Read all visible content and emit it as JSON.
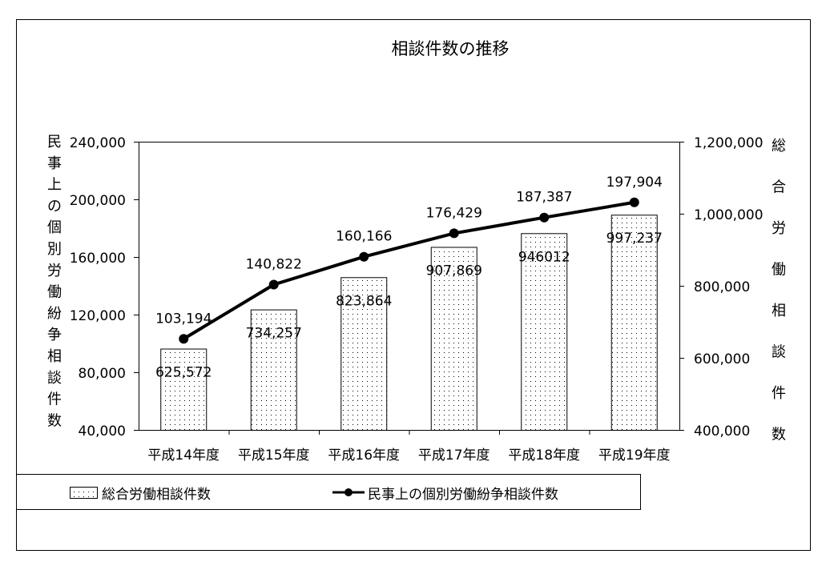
{
  "chart_data": {
    "type": "bar+line",
    "title": "相談件数の推移",
    "categories": [
      "平成14年度",
      "平成15年度",
      "平成16年度",
      "平成17年度",
      "平成18年度",
      "平成19年度"
    ],
    "series": [
      {
        "name": "総合労働相談件数",
        "type": "bar",
        "axis": "right",
        "values": [
          625572,
          734257,
          823864,
          907869,
          946012,
          997237
        ],
        "labels": [
          "625,572",
          "734,257",
          "823,864",
          "907,869",
          "946012",
          "997,237"
        ],
        "pattern": "dotted",
        "color": "#000000"
      },
      {
        "name": "民事上の個別労働紛争相談件数",
        "type": "line",
        "axis": "left",
        "marker": "circle",
        "values": [
          103194,
          140822,
          160166,
          176429,
          187387,
          197904
        ],
        "labels": [
          "103,194",
          "140,822",
          "160,166",
          "176,429",
          "187,387",
          "197,904"
        ],
        "color": "#000000"
      }
    ],
    "ylabel_left": "民事上の個別労働紛争相談件数",
    "ylabel_right": "総合労働相談件数",
    "ylim_left": [
      40000,
      240000
    ],
    "yticks_left": [
      "40,000",
      "80,000",
      "120,000",
      "160,000",
      "200,000",
      "240,000"
    ],
    "ylim_right": [
      400000,
      1200000
    ],
    "yticks_right": [
      "400,000",
      "600,000",
      "800,000",
      "1,000,000",
      "1,200,000"
    ],
    "grid": false,
    "legend_position": "bottom"
  }
}
